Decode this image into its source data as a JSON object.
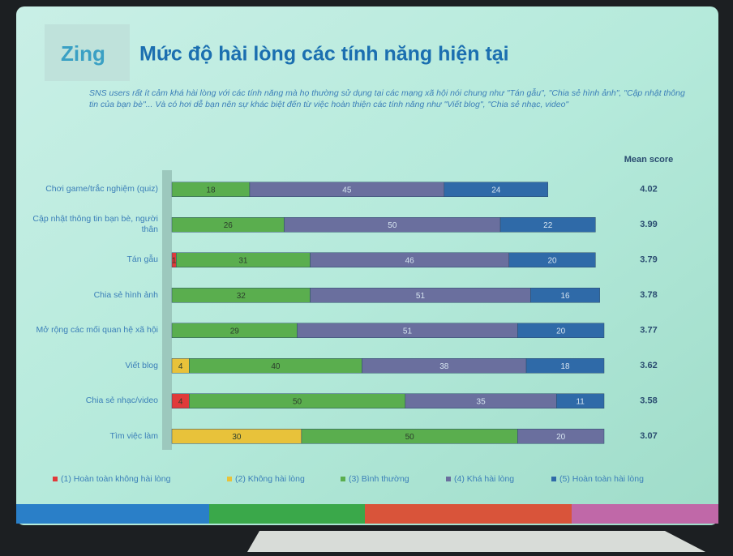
{
  "chart_data": {
    "type": "stacked-bar-horizontal",
    "logo": "Zing",
    "title": "Mức độ hài lòng các tính năng hiện tại",
    "subtitle": "SNS users rất ít cảm khá hài lòng với các tính năng mà họ thường sử dụng tại các mạng xã hội nói chung như \"Tán gẫu\", \"Chia sẻ hình ảnh\", \"Cập nhật thông tin của bạn bè\"... Và có hơi dễ bạn nên sự khác biệt đến từ việc hoàn thiện các tính năng như \"Viết blog\", \"Chia sẻ nhạc, video\"",
    "categories": [
      "Chơi game/trắc nghiệm (quiz)",
      "Cập nhật thông tin bạn bè, người thân",
      "Tán gẫu",
      "Chia sẻ hình ảnh",
      "Mở rộng các mối quan hệ xã hội",
      "Viết blog",
      "Chia sẻ nhạc/video",
      "Tìm việc làm"
    ],
    "xlim": [
      0,
      100
    ],
    "series": [
      {
        "name": "(1) Hoàn toàn không hài lòng",
        "color": "#e03a3a",
        "values": [
          null,
          null,
          1,
          null,
          null,
          null,
          4,
          null
        ]
      },
      {
        "name": "(2) Không hài lòng",
        "color": "#e8c23a",
        "values": [
          null,
          null,
          null,
          null,
          null,
          4,
          null,
          30
        ]
      },
      {
        "name": "(3) Bình thường",
        "color": "#5aae4e",
        "values": [
          18,
          26,
          31,
          32,
          29,
          40,
          50,
          50
        ]
      },
      {
        "name": "(4) Khá hài lòng",
        "color": "#6a6f9e",
        "values": [
          45,
          50,
          46,
          51,
          51,
          38,
          35,
          20
        ]
      },
      {
        "name": "(5) Hoàn toàn hài lòng",
        "color": "#2f6aa8",
        "values": [
          24,
          22,
          20,
          16,
          20,
          18,
          11,
          null
        ]
      }
    ],
    "mean_score": {
      "label": "Mean score",
      "values": [
        4.02,
        3.99,
        3.79,
        3.78,
        3.77,
        3.62,
        3.58,
        3.07
      ]
    }
  }
}
